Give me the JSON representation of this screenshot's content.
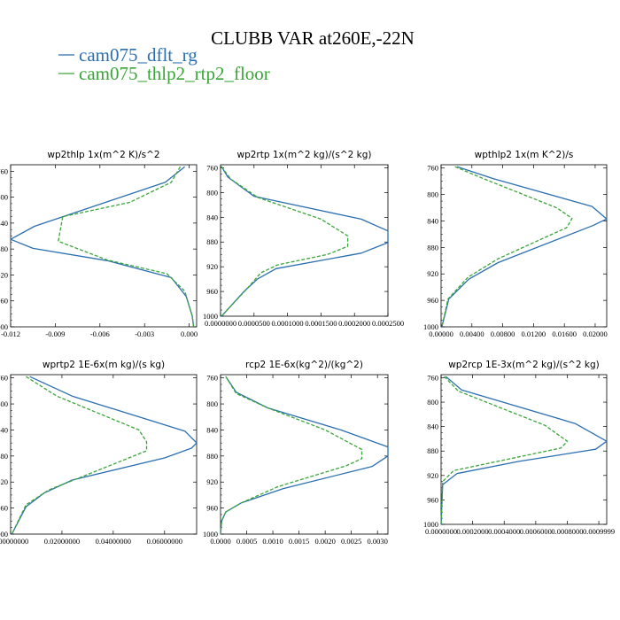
{
  "title": "CLUBB VAR at260E,-22N",
  "legend": [
    {
      "label": "cam075_dflt_rg",
      "color": "#2b6fb0",
      "dash": "solid"
    },
    {
      "label": "cam075_thlp2_rtp2_floor",
      "color": "#3aa538",
      "dash": "dashed"
    }
  ],
  "chart_data": [
    {
      "type": "line",
      "title": "wp2thlp   1x(m^2 K)/s^2",
      "ylim": [
        1000,
        750
      ],
      "yticks": [
        "760",
        "800",
        "840",
        "880",
        "920",
        "960",
        "1000"
      ],
      "xlim": [
        -0.012,
        0.0005
      ],
      "xticks": [
        "-0.012",
        "-0.009",
        "-0.006",
        "-0.003",
        "0.000"
      ],
      "series": [
        {
          "name": "cam075_dflt_rg",
          "x": [
            -0.0003,
            -0.0016,
            -0.0055,
            -0.0104,
            -0.012,
            -0.0105,
            -0.0055,
            -0.0012,
            -0.0002,
            0.0002,
            0.0003
          ],
          "y": [
            753,
            777,
            807,
            845,
            865,
            879,
            898,
            924,
            953,
            983,
            1000
          ]
        },
        {
          "name": "cam075_thlp2_rtp2_floor",
          "x": [
            -0.0006,
            -0.0012,
            -0.004,
            -0.0085,
            -0.0088,
            -0.0055,
            -0.0015,
            -0.0003,
            0.0002,
            0.0003
          ],
          "y": [
            753,
            777,
            808,
            830,
            868,
            897,
            918,
            945,
            983,
            1000
          ]
        }
      ]
    },
    {
      "type": "line",
      "title": "wp2rtp   1x(m^2 kg)/(s^2 kg)",
      "ylim": [
        1000,
        755
      ],
      "yticks": [
        "760",
        "800",
        "840",
        "880",
        "920",
        "960",
        "1000"
      ],
      "xlim": [
        0,
        0.00025
      ],
      "xticks": [
        "0.0000000",
        "0.0000500",
        "0.0001000",
        "0.0001500",
        "0.0002000",
        "0.0002500"
      ],
      "series": [
        {
          "name": "cam075_dflt_rg",
          "x": [
            1.5e-06,
            1.1e-05,
            5e-05,
            0.00021,
            0.00025,
            0.00025,
            0.00021,
            8.3e-05,
            5.5e-05,
            3.5e-05,
            1.5e-06
          ],
          "y": [
            758,
            775,
            806,
            843,
            862,
            881,
            898,
            923,
            940,
            960,
            1000
          ]
        },
        {
          "name": "cam075_thlp2_rtp2_floor",
          "x": [
            1.5e-06,
            1.5e-05,
            5.6e-05,
            0.00015,
            0.00019,
            0.00019,
            0.00016,
            8.5e-05,
            6e-05,
            4e-05,
            1.5e-06
          ],
          "y": [
            758,
            778,
            808,
            843,
            870,
            887,
            900,
            917,
            930,
            955,
            1000
          ]
        }
      ]
    },
    {
      "type": "line",
      "title": "wpthlp2   1x(m K^2)/s",
      "ylim": [
        1000,
        755
      ],
      "yticks": [
        "760",
        "800",
        "840",
        "880",
        "920",
        "960",
        "1000"
      ],
      "xlim": [
        0,
        0.0215
      ],
      "xticks": [
        "0.00000",
        "0.00400",
        "0.00800",
        "0.01200",
        "0.01600",
        "0.02000"
      ],
      "series": [
        {
          "name": "cam075_dflt_rg",
          "x": [
            0.0021,
            0.0068,
            0.0196,
            0.0215,
            0.0197,
            0.0074,
            0.0036,
            0.001,
            0.0001
          ],
          "y": [
            758,
            776,
            818,
            837,
            847,
            903,
            928,
            958,
            1000
          ]
        },
        {
          "name": "cam075_thlp2_rtp2_floor",
          "x": [
            0.0018,
            0.0055,
            0.015,
            0.017,
            0.0163,
            0.0074,
            0.0035,
            0.0009,
            0.0001
          ],
          "y": [
            758,
            776,
            820,
            836,
            850,
            897,
            925,
            958,
            1000
          ]
        }
      ]
    },
    {
      "type": "line",
      "title": "wprtp2   1E-6x(m kg)/(s kg)",
      "ylim": [
        1000,
        755
      ],
      "yticks": [
        "760",
        "800",
        "840",
        "880",
        "920",
        "960",
        "1000"
      ],
      "xlim": [
        0,
        0.0725
      ],
      "xticks": [
        "0.00000000",
        "0.02000000",
        "0.04000000",
        "0.06000000"
      ],
      "series": [
        {
          "name": "cam075_dflt_rg",
          "x": [
            0.0075,
            0.024,
            0.068,
            0.0725,
            0.0705,
            0.06,
            0.024,
            0.013,
            0.006,
            0.0005
          ],
          "y": [
            758,
            788,
            842,
            860,
            868,
            883,
            917,
            937,
            958,
            1000
          ]
        },
        {
          "name": "cam075_thlp2_rtp2_floor",
          "x": [
            0.006,
            0.018,
            0.05,
            0.053,
            0.053,
            0.048,
            0.029,
            0.015,
            0.006,
            0.0005
          ],
          "y": [
            758,
            788,
            840,
            858,
            872,
            880,
            910,
            932,
            955,
            1000
          ]
        }
      ]
    },
    {
      "type": "line",
      "title": "rcp2   1E-6x(kg^2)/(kg^2)",
      "ylim": [
        1000,
        755
      ],
      "yticks": [
        "760",
        "800",
        "840",
        "880",
        "920",
        "960",
        "1000"
      ],
      "xlim": [
        0,
        0.0032
      ],
      "xticks": [
        "0.0000",
        "0.0005",
        "0.0010",
        "0.0015",
        "0.0020",
        "0.0025",
        "0.0030"
      ],
      "series": [
        {
          "name": "cam075_dflt_rg",
          "x": [
            0.0001,
            0.0003,
            0.0009,
            0.0023,
            0.0032,
            0.0032,
            0.0029,
            0.0012,
            0.0004,
            0.0001,
            2e-05,
            0.0
          ],
          "y": [
            758,
            782,
            806,
            840,
            866,
            880,
            896,
            930,
            952,
            966,
            980,
            1000
          ]
        },
        {
          "name": "cam075_thlp2_rtp2_floor",
          "x": [
            0.0001,
            0.0003,
            0.0009,
            0.002,
            0.0027,
            0.0027,
            0.0024,
            0.0011,
            0.0004,
            0.0001,
            2e-05,
            0.0
          ],
          "y": [
            758,
            784,
            806,
            840,
            870,
            884,
            895,
            927,
            952,
            966,
            980,
            1000
          ]
        }
      ]
    },
    {
      "type": "line",
      "title": "wp2rcp   1E-3x(m^2 kg)/(s^2 kg)",
      "ylim": [
        1000,
        755
      ],
      "yticks": [
        "760",
        "800",
        "840",
        "880",
        "920",
        "960",
        "1000"
      ],
      "xlim": [
        0,
        0.00105
      ],
      "xticks": [
        "0.0000000",
        "0.0002000",
        "0.0004000",
        "0.0006000",
        "0.0008000",
        "0.0009999"
      ],
      "series": [
        {
          "name": "cam075_dflt_rg",
          "x": [
            3e-05,
            0.00013,
            0.00085,
            0.00105,
            0.00098,
            0.00049,
            0.0001,
            1e-05,
            0.0
          ],
          "y": [
            758,
            780,
            835,
            864,
            877,
            897,
            917,
            935,
            1000
          ]
        },
        {
          "name": "cam075_thlp2_rtp2_floor",
          "x": [
            2e-05,
            0.00011,
            0.00066,
            0.0008,
            0.00076,
            0.00045,
            8e-05,
            1e-05,
            0.0
          ],
          "y": [
            758,
            782,
            838,
            864,
            875,
            892,
            912,
            930,
            1000
          ]
        }
      ]
    }
  ]
}
